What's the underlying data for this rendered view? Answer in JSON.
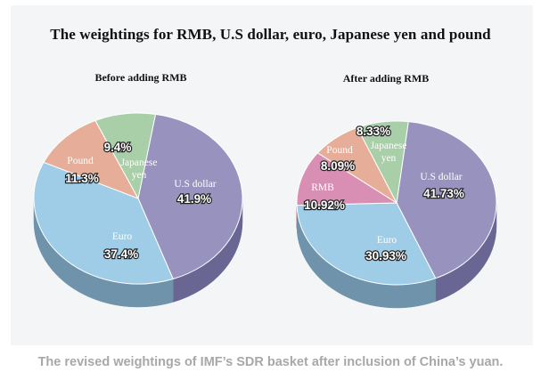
{
  "figure_title": "The weightings for RMB, U.S dollar, euro, Japanese yen and pound",
  "caption": "The revised weightings of IMF’s SDR basket after inclusion of China’s yuan.",
  "chart_data": [
    {
      "type": "pie",
      "title": "Before adding RMB",
      "slices": [
        {
          "label": "U.S dollar",
          "value": 41.9,
          "display": "41.9%",
          "color": "#9892bf",
          "side": "#6a6694"
        },
        {
          "label": "Euro",
          "value": 37.4,
          "display": "37.4%",
          "color": "#9fcde7",
          "side": "#6e93ab"
        },
        {
          "label": "Pound",
          "value": 11.3,
          "display": "11.3%",
          "color": "#e6ad98",
          "side": "#a67e70"
        },
        {
          "label": "Japanese yen",
          "value": 9.4,
          "display": "9.4%",
          "color": "#a8cfa8",
          "side": "#79997a"
        }
      ]
    },
    {
      "type": "pie",
      "title": "After adding RMB",
      "slices": [
        {
          "label": "U.S dollar",
          "value": 41.73,
          "display": "41.73%",
          "color": "#9892bf",
          "side": "#6a6694"
        },
        {
          "label": "Euro",
          "value": 30.93,
          "display": "30.93%",
          "color": "#9fcde7",
          "side": "#6e93ab"
        },
        {
          "label": "RMB",
          "value": 10.92,
          "display": "10.92%",
          "color": "#d98fb3",
          "side": "#9c6782"
        },
        {
          "label": "Pound",
          "value": 8.09,
          "display": "8.09%",
          "color": "#e6ad98",
          "side": "#a67e70"
        },
        {
          "label": "Japanese yen",
          "value": 8.33,
          "display": "8.33%",
          "color": "#a8cfa8",
          "side": "#79997a"
        }
      ]
    }
  ]
}
